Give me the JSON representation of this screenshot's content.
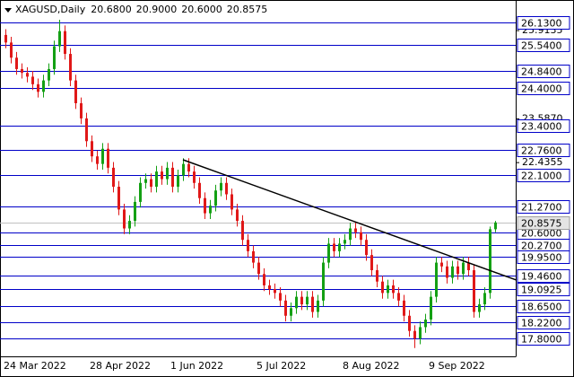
{
  "chart_data": {
    "type": "candlestick",
    "symbol": "XAGUSD,Daily",
    "quote": [
      {
        "value": 20.68,
        "label": "20.6800"
      },
      {
        "value": 20.9,
        "label": "20.9000"
      },
      {
        "value": 20.6,
        "label": "20.6000"
      },
      {
        "value": 20.8575,
        "label": "20.8575"
      }
    ],
    "categories": [
      "24 Mar 2022",
      null,
      null,
      null,
      null,
      null,
      null,
      null,
      null,
      null,
      null,
      null,
      null,
      null,
      null,
      null,
      "28 Apr 2022",
      null,
      null,
      null,
      null,
      null,
      null,
      null,
      null,
      null,
      null,
      null,
      null,
      null,
      null,
      "1 Jun 2022",
      null,
      null,
      null,
      null,
      null,
      null,
      null,
      null,
      null,
      null,
      null,
      null,
      null,
      null,
      null,
      "5 Jul 2022",
      null,
      null,
      null,
      null,
      null,
      null,
      null,
      null,
      null,
      null,
      null,
      null,
      null,
      null,
      null,
      "8 Aug 2022",
      null,
      null,
      null,
      null,
      null,
      null,
      null,
      null,
      null,
      null,
      null,
      null,
      null,
      null,
      null,
      "9 Sep 2022",
      null,
      null,
      null,
      null,
      null,
      null,
      null,
      null,
      null,
      null,
      null,
      null
    ],
    "open": [
      25.8,
      25.6,
      25.2,
      24.9,
      24.8,
      24.7,
      24.5,
      24.3,
      24.6,
      24.9,
      25.5,
      25.9,
      25.3,
      24.6,
      24.0,
      23.6,
      23.0,
      22.6,
      22.4,
      22.8,
      22.3,
      21.8,
      21.2,
      20.7,
      20.9,
      21.4,
      21.9,
      22.0,
      21.8,
      22.2,
      22.0,
      22.3,
      21.8,
      22.1,
      22.4,
      22.2,
      21.9,
      21.5,
      21.1,
      21.3,
      21.7,
      21.9,
      21.6,
      21.2,
      20.9,
      20.4,
      20.1,
      19.8,
      19.5,
      19.2,
      19.1,
      19.0,
      18.8,
      18.4,
      18.6,
      18.9,
      18.7,
      18.9,
      18.5,
      18.8,
      19.8,
      20.3,
      20.1,
      20.3,
      20.4,
      20.7,
      20.6,
      20.4,
      20.0,
      19.6,
      19.3,
      19.0,
      19.2,
      19.0,
      18.8,
      18.4,
      18.0,
      17.8,
      18.1,
      18.3,
      18.9,
      19.8,
      19.7,
      19.4,
      19.7,
      19.5,
      19.8,
      19.6,
      18.5,
      18.7,
      19.0,
      20.68
    ],
    "high": [
      25.95,
      25.75,
      25.35,
      25.05,
      24.95,
      24.85,
      24.65,
      24.75,
      25.05,
      25.65,
      26.2,
      26.05,
      25.45,
      24.75,
      24.15,
      23.75,
      23.15,
      22.75,
      22.95,
      22.95,
      22.45,
      21.95,
      21.35,
      21.05,
      21.55,
      22.05,
      22.15,
      22.15,
      22.35,
      22.35,
      22.45,
      22.45,
      22.25,
      22.55,
      22.55,
      22.35,
      22.05,
      21.65,
      21.45,
      21.85,
      22.05,
      22.05,
      21.75,
      21.35,
      21.05,
      20.55,
      20.25,
      19.95,
      19.65,
      19.35,
      19.25,
      19.15,
      18.95,
      18.75,
      19.05,
      19.05,
      19.05,
      19.05,
      18.95,
      19.95,
      20.45,
      20.45,
      20.45,
      20.55,
      20.85,
      20.85,
      20.75,
      20.55,
      20.15,
      19.75,
      19.45,
      19.35,
      19.35,
      19.15,
      18.95,
      18.55,
      18.15,
      18.25,
      18.45,
      19.05,
      19.95,
      19.95,
      19.85,
      19.85,
      19.85,
      19.95,
      19.95,
      19.75,
      18.85,
      19.15,
      20.75,
      20.9
    ],
    "low": [
      25.45,
      25.05,
      24.75,
      24.65,
      24.55,
      24.35,
      24.15,
      24.15,
      24.45,
      24.75,
      25.35,
      25.15,
      24.45,
      23.85,
      23.45,
      22.85,
      22.45,
      22.25,
      22.25,
      22.15,
      21.65,
      21.05,
      20.55,
      20.55,
      20.75,
      21.25,
      21.75,
      21.65,
      21.65,
      21.85,
      21.85,
      21.65,
      21.65,
      21.95,
      22.05,
      21.75,
      21.35,
      20.95,
      20.95,
      21.15,
      21.55,
      21.45,
      21.05,
      20.75,
      20.25,
      19.95,
      19.65,
      19.35,
      19.05,
      18.95,
      18.85,
      18.65,
      18.25,
      18.25,
      18.45,
      18.55,
      18.55,
      18.35,
      18.35,
      18.65,
      19.65,
      19.95,
      19.95,
      20.15,
      20.25,
      20.45,
      20.25,
      19.85,
      19.45,
      19.15,
      18.85,
      18.85,
      18.85,
      18.65,
      18.25,
      17.85,
      17.55,
      17.65,
      17.95,
      18.15,
      18.75,
      19.55,
      19.25,
      19.25,
      19.35,
      19.35,
      19.45,
      18.35,
      18.35,
      18.55,
      18.85,
      20.6
    ],
    "close": [
      25.6,
      25.2,
      24.9,
      24.8,
      24.7,
      24.5,
      24.3,
      24.6,
      24.9,
      25.5,
      25.9,
      25.3,
      24.6,
      24.0,
      23.6,
      23.0,
      22.6,
      22.4,
      22.8,
      22.3,
      21.8,
      21.2,
      20.7,
      20.9,
      21.4,
      21.9,
      22.0,
      21.8,
      22.2,
      22.0,
      22.3,
      21.8,
      22.1,
      22.4,
      22.2,
      21.9,
      21.5,
      21.1,
      21.3,
      21.7,
      21.9,
      21.6,
      21.2,
      20.9,
      20.4,
      20.1,
      19.8,
      19.5,
      19.2,
      19.1,
      19.0,
      18.8,
      18.4,
      18.6,
      18.9,
      18.7,
      18.9,
      18.5,
      18.8,
      19.8,
      20.3,
      20.1,
      20.3,
      20.4,
      20.7,
      20.6,
      20.4,
      20.0,
      19.6,
      19.3,
      19.0,
      19.2,
      19.0,
      18.8,
      18.4,
      18.0,
      17.8,
      18.1,
      18.3,
      18.9,
      19.8,
      19.7,
      19.4,
      19.7,
      19.5,
      19.8,
      19.6,
      18.5,
      18.7,
      19.0,
      20.68,
      20.8575
    ],
    "up_color": "#14a014",
    "down_color": "#e01818",
    "ylim": [
      17.33,
      26.72
    ],
    "yticks": [
      {
        "value": 25.9135,
        "label": "25.9135"
      },
      {
        "value": 23.587,
        "label": "23.5870"
      },
      {
        "value": 22.4355,
        "label": "22.4355"
      }
    ],
    "levels": [
      {
        "value": 26.13,
        "label": "26.1300"
      },
      {
        "value": 25.54,
        "label": "25.5400"
      },
      {
        "value": 24.84,
        "label": "24.8400"
      },
      {
        "value": 24.4,
        "label": "24.4000"
      },
      {
        "value": 23.4,
        "label": "23.4000"
      },
      {
        "value": 22.76,
        "label": "22.7600"
      },
      {
        "value": 22.1,
        "label": "22.1000"
      },
      {
        "value": 21.27,
        "label": "21.2700"
      },
      {
        "value": 20.6,
        "label": "20.6000"
      },
      {
        "value": 20.27,
        "label": "20.2700"
      },
      {
        "value": 19.95,
        "label": "19.9500"
      },
      {
        "value": 19.46,
        "label": "19.4600"
      },
      {
        "value": 19.0925,
        "label": "19.0925"
      },
      {
        "value": 18.65,
        "label": "18.6500"
      },
      {
        "value": 18.22,
        "label": "18.2200"
      },
      {
        "value": 17.8,
        "label": "17.8000"
      }
    ],
    "level_color": "#0000c8",
    "last_price": {
      "value": 20.8575,
      "label": "20.8575"
    },
    "trendline": {
      "x": [
        33,
        95
      ],
      "y": [
        22.51,
        19.34
      ],
      "color": "#000000"
    }
  }
}
